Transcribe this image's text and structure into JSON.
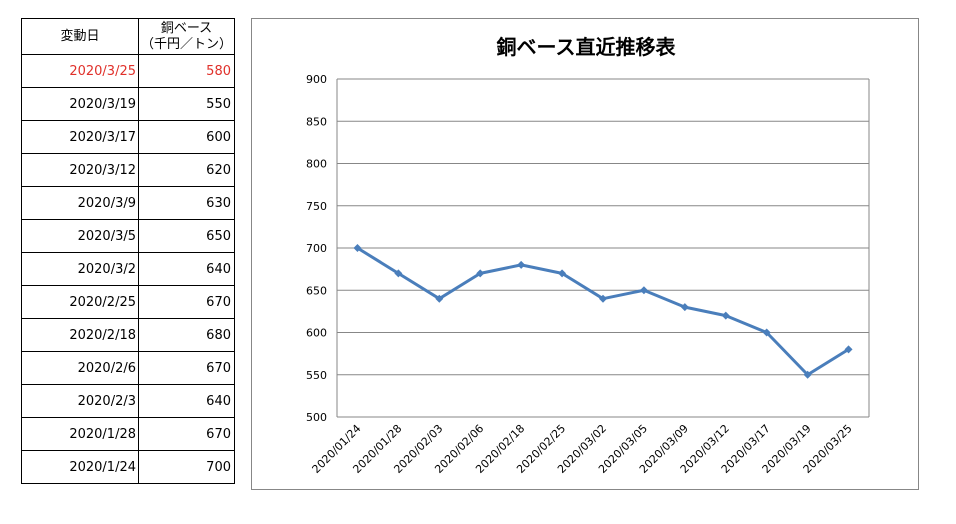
{
  "table": {
    "header_date": "変動日",
    "header_price_line1": "銅ベース",
    "header_price_line2": "（千円／トン）",
    "rows": [
      {
        "date": "2020/3/25",
        "price": "580"
      },
      {
        "date": "2020/3/19",
        "price": "550"
      },
      {
        "date": "2020/3/17",
        "price": "600"
      },
      {
        "date": "2020/3/12",
        "price": "620"
      },
      {
        "date": "2020/3/9",
        "price": "630"
      },
      {
        "date": "2020/3/5",
        "price": "650"
      },
      {
        "date": "2020/3/2",
        "price": "640"
      },
      {
        "date": "2020/2/25",
        "price": "670"
      },
      {
        "date": "2020/2/18",
        "price": "680"
      },
      {
        "date": "2020/2/6",
        "price": "670"
      },
      {
        "date": "2020/2/3",
        "price": "640"
      },
      {
        "date": "2020/1/28",
        "price": "670"
      },
      {
        "date": "2020/1/24",
        "price": "700"
      }
    ],
    "highlight_color": "#e0302a"
  },
  "chart_data": {
    "type": "line",
    "title": "銅ベース直近推移表",
    "xlabel": "",
    "ylabel": "",
    "categories": [
      "2020/01/24",
      "2020/01/28",
      "2020/02/03",
      "2020/02/06",
      "2020/02/18",
      "2020/02/25",
      "2020/03/02",
      "2020/03/05",
      "2020/03/09",
      "2020/03/12",
      "2020/03/17",
      "2020/03/19",
      "2020/03/25"
    ],
    "series": [
      {
        "values": [
          700,
          670,
          640,
          670,
          680,
          670,
          640,
          650,
          630,
          620,
          600,
          550,
          580
        ]
      }
    ],
    "ylim": [
      500,
      900
    ],
    "yticks": [
      500,
      550,
      600,
      650,
      700,
      750,
      800,
      850,
      900
    ],
    "grid": true,
    "legend": "none",
    "marker": "diamond",
    "line_color": "#4a7ebb"
  }
}
